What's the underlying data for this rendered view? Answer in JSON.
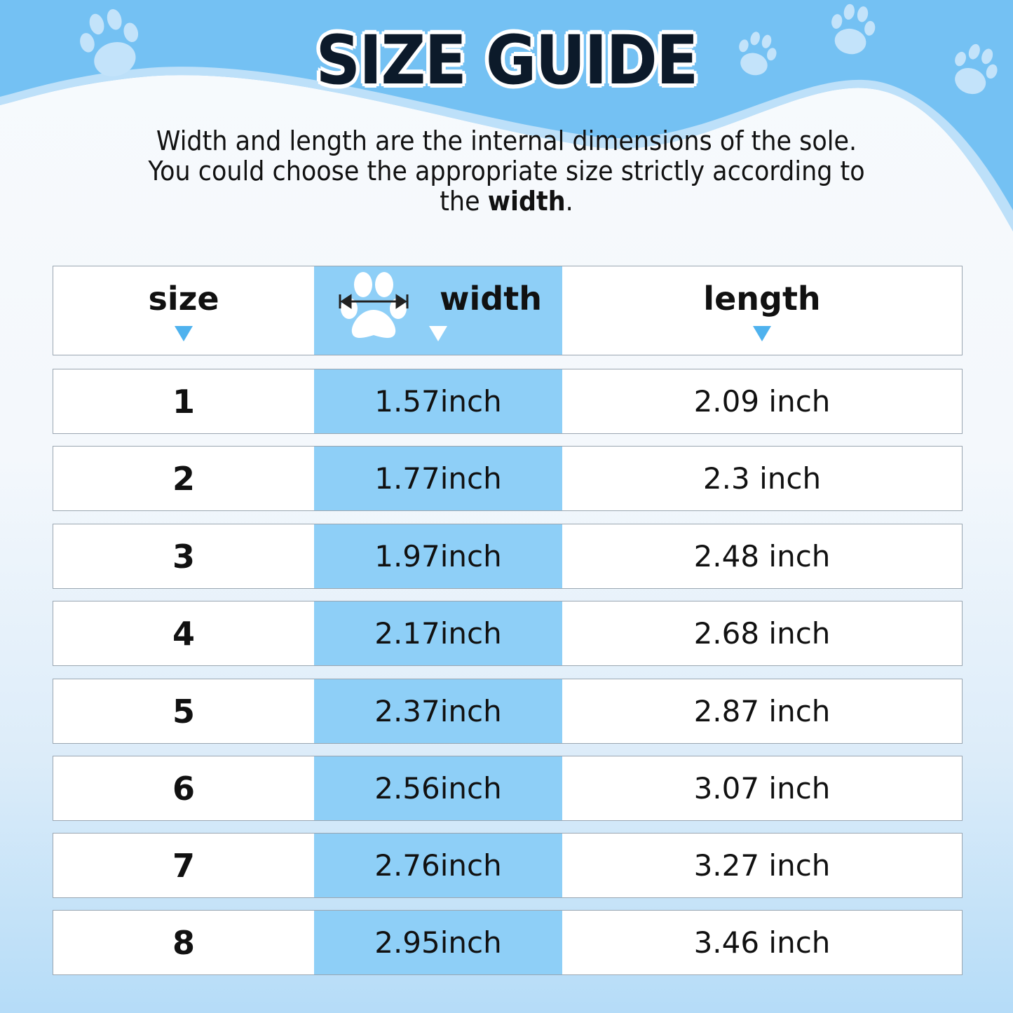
{
  "title": "SIZE GUIDE",
  "description": {
    "text": "Width and length are the internal dimensions of the sole. You could choose the appropriate size strictly according to the",
    "bold": "width",
    "end": "."
  },
  "colors": {
    "sky": "#74c1f3",
    "width_column": "#8ecff7",
    "arrow": "#4fb2ee",
    "text": "#111111"
  },
  "table": {
    "headers": [
      "size",
      "width",
      "length"
    ],
    "rows": [
      [
        "1",
        "1.57inch",
        "2.09 inch"
      ],
      [
        "2",
        "1.77inch",
        "2.3 inch"
      ],
      [
        "3",
        "1.97inch",
        "2.48 inch"
      ],
      [
        "4",
        "2.17inch",
        "2.68 inch"
      ],
      [
        "5",
        "2.37inch",
        "2.87 inch"
      ],
      [
        "6",
        "2.56inch",
        "3.07 inch"
      ],
      [
        "7",
        "2.76inch",
        "3.27 inch"
      ],
      [
        "8",
        "2.95inch",
        "3.46 inch"
      ]
    ]
  }
}
